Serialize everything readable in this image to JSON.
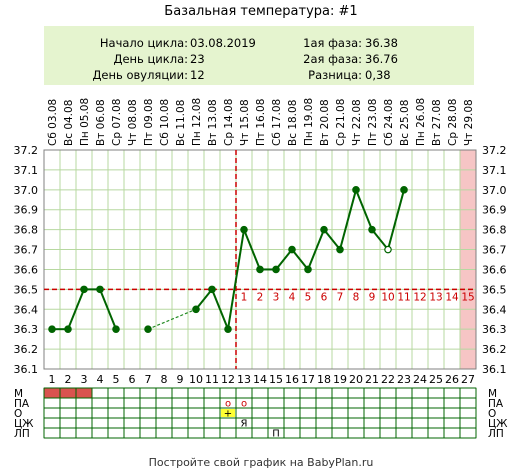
{
  "title": "Базальная температура: #1",
  "info": {
    "cycle_start_label": "Начало цикла:",
    "cycle_start_value": "03.08.2019",
    "cycle_day_label": "День цикла:",
    "cycle_day_value": "23",
    "ovulation_day_label": "День овуляции:",
    "ovulation_day_value": "12",
    "phase1_label": "1ая фаза:",
    "phase1_value": "36.38",
    "phase2_label": "2ая фаза:",
    "phase2_value": "36.76",
    "diff_label": "Разница:",
    "diff_value": "0,38"
  },
  "footer": "Постройте свой график на BabyPlan.ru",
  "colors": {
    "line": "#006400",
    "dashed_line": "#228b22",
    "coverline": "#cc0000",
    "grid": "#b7d8a0",
    "highlight_column": "#f6c5c5",
    "period_cell": "#d9534f",
    "info_bg": "#e5f4cf",
    "post_ovulation_numbers": "#cc0000",
    "marker_cell": "#ffff33"
  },
  "chart_data": {
    "type": "line",
    "dates": [
      "Сб 03.08",
      "Вс 04.08",
      "Пн 05.08",
      "Вт 06.08",
      "Ср 07.08",
      "Чт 08.08",
      "Пт 09.08",
      "Сб 10.08",
      "Вс 11.08",
      "Пн 12.08",
      "Вт 13.08",
      "Ср 14.08",
      "Чт 15.08",
      "Пт 16.08",
      "Сб 17.08",
      "Вс 18.08",
      "Пн 19.08",
      "Вт 20.08",
      "Ср 21.08",
      "Чт 22.08",
      "Пт 23.08",
      "Сб 24.08",
      "Вс 25.08",
      "Пн 26.08",
      "Вт 27.08",
      "Ср 28.08",
      "Чт 29.08"
    ],
    "days": [
      1,
      2,
      3,
      4,
      5,
      6,
      7,
      8,
      9,
      10,
      11,
      12,
      13,
      14,
      15,
      16,
      17,
      18,
      19,
      20,
      21,
      22,
      23,
      24,
      25,
      26,
      27
    ],
    "values": [
      36.3,
      36.3,
      36.5,
      36.5,
      36.3,
      null,
      36.3,
      null,
      null,
      36.4,
      36.5,
      36.3,
      36.8,
      36.6,
      36.6,
      36.7,
      36.6,
      36.8,
      36.7,
      37.0,
      36.8,
      36.7,
      37.0,
      null,
      null,
      null,
      null
    ],
    "hollow_points": [
      22
    ],
    "dashed_gaps": [
      [
        7,
        10
      ]
    ],
    "ylim": [
      36.1,
      37.2
    ],
    "yticks": [
      "37.2",
      "37.1",
      "37.0",
      "36.9",
      "36.8",
      "36.7",
      "36.6",
      "36.5",
      "36.4",
      "36.3",
      "36.2",
      "36.1"
    ],
    "coverline": 36.5,
    "ovulation_day": 12,
    "highlight_day": 27,
    "post_ovulation_numbers": [
      "1",
      "2",
      "3",
      "4",
      "5",
      "6",
      "7",
      "8",
      "9",
      "10",
      "11",
      "12",
      "13",
      "14",
      "15"
    ]
  },
  "symptoms": {
    "row_labels": [
      "М",
      "ПА",
      "О",
      "ЦЖ",
      "ЛП"
    ],
    "period_days": [
      1,
      2,
      3
    ],
    "marks": [
      {
        "row": 1,
        "day": 12,
        "symbol": "о"
      },
      {
        "row": 1,
        "day": 13,
        "symbol": "о"
      },
      {
        "row": 2,
        "day": 12,
        "symbol": "+"
      },
      {
        "row": 3,
        "day": 13,
        "symbol": "Я"
      },
      {
        "row": 4,
        "day": 15,
        "symbol": "П"
      }
    ]
  }
}
